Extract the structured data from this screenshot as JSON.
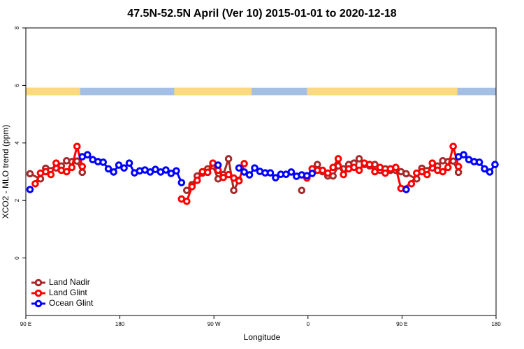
{
  "chart_data": {
    "type": "line",
    "title": "47.5N-52.5N April (Ver 10)   2015-01-01 to 2020-12-18",
    "x_label": "Longitude",
    "y_label": "XCO2 - MLO trend (ppm)",
    "xlim": [
      90,
      540
    ],
    "ylim": [
      -2,
      8
    ],
    "xticks": [
      {
        "value": 90,
        "label": "90 E"
      },
      {
        "value": 180,
        "label": "180"
      },
      {
        "value": 270,
        "label": "90 W"
      },
      {
        "value": 360,
        "label": "0"
      },
      {
        "value": 450,
        "label": "90 E"
      },
      {
        "value": 540,
        "label": "180"
      }
    ],
    "yticks": [
      0,
      2,
      4,
      6,
      8
    ],
    "legend": "bottomleft",
    "mask": {
      "ylim": [
        5.66,
        5.92
      ],
      "land_color": "#fbd97f",
      "ocean_color": "#a4bfe3",
      "land": [
        [
          90,
          142
        ],
        [
          232,
          306
        ],
        [
          359,
          503
        ]
      ]
    },
    "series": [
      {
        "name": "Land Nadir",
        "color": "#a52a2a",
        "x": [
          94,
          104,
          109,
          119,
          124,
          129,
          134,
          139,
          144,
          null,
          244,
          249,
          254,
          259,
          264,
          269,
          274,
          279,
          284,
          289,
          294,
          null,
          354,
          null,
          369,
          374,
          379,
          384,
          389,
          394,
          399,
          404,
          409,
          414,
          419,
          424,
          429,
          434,
          439,
          444,
          449,
          454,
          464,
          469,
          479,
          484,
          489,
          494,
          499,
          504
        ],
        "values": [
          2.93,
          2.75,
          3.12,
          3.13,
          3.2,
          3.38,
          3.35,
          3.37,
          2.98,
          null,
          2.35,
          2.55,
          2.85,
          2.95,
          3.1,
          3.2,
          2.75,
          2.9,
          3.45,
          2.35,
          2.7,
          null,
          2.35,
          null,
          3.25,
          3.0,
          2.85,
          2.85,
          3.2,
          3.1,
          3.25,
          3.3,
          3.45,
          3.25,
          3.2,
          3.25,
          3.05,
          3.1,
          3.05,
          3.05,
          3.0,
          2.93,
          2.75,
          3.12,
          3.13,
          3.2,
          3.38,
          3.35,
          3.37,
          2.98
        ]
      },
      {
        "name": "Land Glint",
        "color": "#ff0000",
        "x": [
          99,
          104,
          109,
          114,
          119,
          124,
          129,
          134,
          139,
          144,
          null,
          239,
          244,
          249,
          254,
          259,
          264,
          269,
          274,
          279,
          284,
          289,
          294,
          299,
          null,
          359,
          364,
          369,
          374,
          379,
          384,
          389,
          394,
          399,
          404,
          409,
          414,
          419,
          424,
          429,
          434,
          439,
          444,
          449,
          459,
          464,
          469,
          474,
          479,
          484,
          489,
          494,
          499,
          504
        ],
        "values": [
          2.58,
          2.95,
          3.0,
          2.9,
          3.3,
          3.05,
          3.0,
          3.15,
          3.88,
          3.18,
          null,
          2.05,
          1.97,
          2.48,
          2.7,
          3.0,
          2.98,
          3.3,
          3.05,
          2.8,
          2.9,
          2.78,
          2.68,
          3.28,
          null,
          2.78,
          3.1,
          3.05,
          3.05,
          2.95,
          3.15,
          3.45,
          2.9,
          3.1,
          3.15,
          3.05,
          3.3,
          3.25,
          3.0,
          3.15,
          2.95,
          3.1,
          3.15,
          2.42,
          2.58,
          2.95,
          3.0,
          2.9,
          3.3,
          3.05,
          3.0,
          3.15,
          3.88,
          3.18
        ]
      },
      {
        "name": "Ocean Glint",
        "color": "#0000ff",
        "x": [
          94,
          null,
          144,
          149,
          154,
          159,
          164,
          169,
          174,
          179,
          184,
          189,
          194,
          199,
          204,
          209,
          214,
          219,
          224,
          229,
          234,
          239,
          null,
          274,
          null,
          294,
          299,
          304,
          309,
          314,
          319,
          324,
          329,
          334,
          339,
          344,
          349,
          354,
          359,
          364,
          null,
          454,
          null,
          504,
          509,
          514,
          519,
          524,
          529,
          534,
          539
        ],
        "values": [
          2.38,
          null,
          3.52,
          3.59,
          3.42,
          3.35,
          3.33,
          3.1,
          2.99,
          3.23,
          3.13,
          3.3,
          2.96,
          3.03,
          3.06,
          2.99,
          3.08,
          2.99,
          3.06,
          2.94,
          3.03,
          2.62,
          null,
          3.23,
          null,
          3.13,
          2.99,
          2.89,
          3.13,
          3.01,
          2.96,
          2.96,
          2.79,
          2.91,
          2.91,
          2.99,
          2.84,
          2.89,
          2.86,
          2.94,
          null,
          2.38,
          null,
          3.52,
          3.59,
          3.42,
          3.35,
          3.33,
          3.1,
          2.99,
          3.25
        ]
      }
    ]
  }
}
